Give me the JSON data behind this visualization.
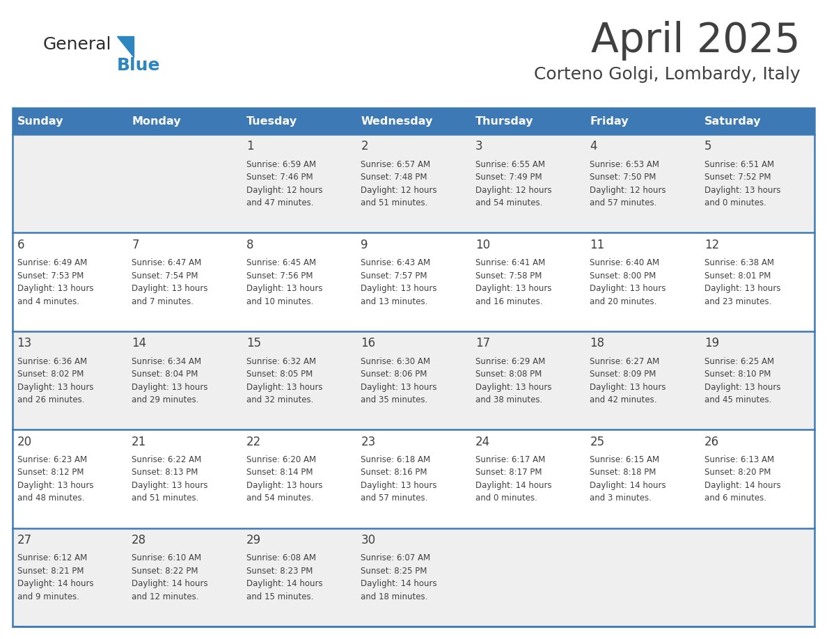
{
  "title": "April 2025",
  "subtitle": "Corteno Golgi, Lombardy, Italy",
  "header_bg_color": "#3D7AB5",
  "header_text_color": "#FFFFFF",
  "days_of_week": [
    "Sunday",
    "Monday",
    "Tuesday",
    "Wednesday",
    "Thursday",
    "Friday",
    "Saturday"
  ],
  "row_bg_even": "#EFEFEF",
  "row_bg_odd": "#FFFFFF",
  "divider_color": "#3D7AB5",
  "text_color": "#404040",
  "logo_general_color": "#2C2C2C",
  "logo_blue_color": "#2E86C1",
  "weeks": [
    [
      {
        "day": "",
        "info": ""
      },
      {
        "day": "",
        "info": ""
      },
      {
        "day": "1",
        "info": "Sunrise: 6:59 AM\nSunset: 7:46 PM\nDaylight: 12 hours\nand 47 minutes."
      },
      {
        "day": "2",
        "info": "Sunrise: 6:57 AM\nSunset: 7:48 PM\nDaylight: 12 hours\nand 51 minutes."
      },
      {
        "day": "3",
        "info": "Sunrise: 6:55 AM\nSunset: 7:49 PM\nDaylight: 12 hours\nand 54 minutes."
      },
      {
        "day": "4",
        "info": "Sunrise: 6:53 AM\nSunset: 7:50 PM\nDaylight: 12 hours\nand 57 minutes."
      },
      {
        "day": "5",
        "info": "Sunrise: 6:51 AM\nSunset: 7:52 PM\nDaylight: 13 hours\nand 0 minutes."
      }
    ],
    [
      {
        "day": "6",
        "info": "Sunrise: 6:49 AM\nSunset: 7:53 PM\nDaylight: 13 hours\nand 4 minutes."
      },
      {
        "day": "7",
        "info": "Sunrise: 6:47 AM\nSunset: 7:54 PM\nDaylight: 13 hours\nand 7 minutes."
      },
      {
        "day": "8",
        "info": "Sunrise: 6:45 AM\nSunset: 7:56 PM\nDaylight: 13 hours\nand 10 minutes."
      },
      {
        "day": "9",
        "info": "Sunrise: 6:43 AM\nSunset: 7:57 PM\nDaylight: 13 hours\nand 13 minutes."
      },
      {
        "day": "10",
        "info": "Sunrise: 6:41 AM\nSunset: 7:58 PM\nDaylight: 13 hours\nand 16 minutes."
      },
      {
        "day": "11",
        "info": "Sunrise: 6:40 AM\nSunset: 8:00 PM\nDaylight: 13 hours\nand 20 minutes."
      },
      {
        "day": "12",
        "info": "Sunrise: 6:38 AM\nSunset: 8:01 PM\nDaylight: 13 hours\nand 23 minutes."
      }
    ],
    [
      {
        "day": "13",
        "info": "Sunrise: 6:36 AM\nSunset: 8:02 PM\nDaylight: 13 hours\nand 26 minutes."
      },
      {
        "day": "14",
        "info": "Sunrise: 6:34 AM\nSunset: 8:04 PM\nDaylight: 13 hours\nand 29 minutes."
      },
      {
        "day": "15",
        "info": "Sunrise: 6:32 AM\nSunset: 8:05 PM\nDaylight: 13 hours\nand 32 minutes."
      },
      {
        "day": "16",
        "info": "Sunrise: 6:30 AM\nSunset: 8:06 PM\nDaylight: 13 hours\nand 35 minutes."
      },
      {
        "day": "17",
        "info": "Sunrise: 6:29 AM\nSunset: 8:08 PM\nDaylight: 13 hours\nand 38 minutes."
      },
      {
        "day": "18",
        "info": "Sunrise: 6:27 AM\nSunset: 8:09 PM\nDaylight: 13 hours\nand 42 minutes."
      },
      {
        "day": "19",
        "info": "Sunrise: 6:25 AM\nSunset: 8:10 PM\nDaylight: 13 hours\nand 45 minutes."
      }
    ],
    [
      {
        "day": "20",
        "info": "Sunrise: 6:23 AM\nSunset: 8:12 PM\nDaylight: 13 hours\nand 48 minutes."
      },
      {
        "day": "21",
        "info": "Sunrise: 6:22 AM\nSunset: 8:13 PM\nDaylight: 13 hours\nand 51 minutes."
      },
      {
        "day": "22",
        "info": "Sunrise: 6:20 AM\nSunset: 8:14 PM\nDaylight: 13 hours\nand 54 minutes."
      },
      {
        "day": "23",
        "info": "Sunrise: 6:18 AM\nSunset: 8:16 PM\nDaylight: 13 hours\nand 57 minutes."
      },
      {
        "day": "24",
        "info": "Sunrise: 6:17 AM\nSunset: 8:17 PM\nDaylight: 14 hours\nand 0 minutes."
      },
      {
        "day": "25",
        "info": "Sunrise: 6:15 AM\nSunset: 8:18 PM\nDaylight: 14 hours\nand 3 minutes."
      },
      {
        "day": "26",
        "info": "Sunrise: 6:13 AM\nSunset: 8:20 PM\nDaylight: 14 hours\nand 6 minutes."
      }
    ],
    [
      {
        "day": "27",
        "info": "Sunrise: 6:12 AM\nSunset: 8:21 PM\nDaylight: 14 hours\nand 9 minutes."
      },
      {
        "day": "28",
        "info": "Sunrise: 6:10 AM\nSunset: 8:22 PM\nDaylight: 14 hours\nand 12 minutes."
      },
      {
        "day": "29",
        "info": "Sunrise: 6:08 AM\nSunset: 8:23 PM\nDaylight: 14 hours\nand 15 minutes."
      },
      {
        "day": "30",
        "info": "Sunrise: 6:07 AM\nSunset: 8:25 PM\nDaylight: 14 hours\nand 18 minutes."
      },
      {
        "day": "",
        "info": ""
      },
      {
        "day": "",
        "info": ""
      },
      {
        "day": "",
        "info": ""
      }
    ]
  ]
}
